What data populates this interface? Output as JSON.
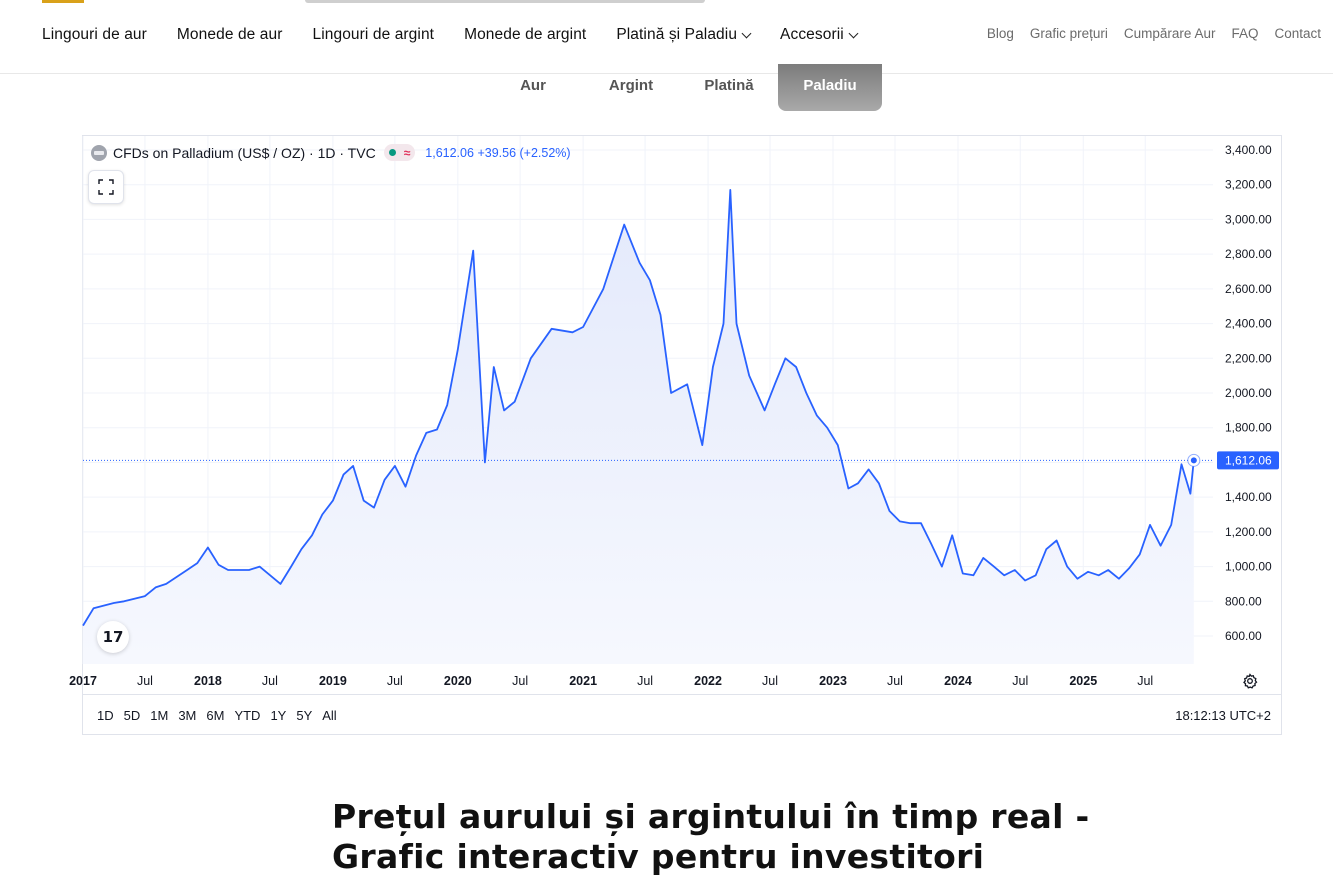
{
  "nav": {
    "main": [
      {
        "label": "Lingouri de aur",
        "dropdown": false
      },
      {
        "label": "Monede de aur",
        "dropdown": false
      },
      {
        "label": "Lingouri de argint",
        "dropdown": false
      },
      {
        "label": "Monede de argint",
        "dropdown": false
      },
      {
        "label": "Platină și Paladiu",
        "dropdown": true
      },
      {
        "label": "Accesorii",
        "dropdown": true
      }
    ],
    "secondary": [
      "Blog",
      "Grafic prețuri",
      "Cumpărare Aur",
      "FAQ",
      "Contact"
    ]
  },
  "metal_tabs": {
    "items": [
      "Aur",
      "Argint",
      "Platină",
      "Paladiu"
    ],
    "active": "Paladiu"
  },
  "widget": {
    "symbol_title": "CFDs on Palladium (US$ / OZ) · 1D · TVC",
    "badge_icon": "≈",
    "last_price": "1,612.06",
    "change": "+39.56 (+2.52%)",
    "price_label": "1,612.06",
    "tv_logo": "17",
    "ranges": [
      "1D",
      "5D",
      "1M",
      "3M",
      "6M",
      "YTD",
      "1Y",
      "5Y",
      "All"
    ],
    "clock": "18:12:13 UTC+2",
    "colors": {
      "line": "#2962ff",
      "fill": "#e3e9fb",
      "grid": "#f0f3fa"
    }
  },
  "chart_data": {
    "type": "area",
    "series": [
      {
        "values": [
          [
            "2017-01-01",
            660
          ],
          [
            "2017-02-01",
            760
          ],
          [
            "2017-04-01",
            790
          ],
          [
            "2017-05-01",
            800
          ],
          [
            "2017-07-01",
            830
          ],
          [
            "2017-08-01",
            880
          ],
          [
            "2017-09-01",
            900
          ],
          [
            "2017-11-01",
            980
          ],
          [
            "2017-12-01",
            1020
          ],
          [
            "2018-01-01",
            1110
          ],
          [
            "2018-02-01",
            1010
          ],
          [
            "2018-03-01",
            980
          ],
          [
            "2018-05-01",
            980
          ],
          [
            "2018-06-01",
            1000
          ],
          [
            "2018-08-01",
            900
          ],
          [
            "2018-09-01",
            1000
          ],
          [
            "2018-10-01",
            1100
          ],
          [
            "2018-11-01",
            1180
          ],
          [
            "2018-12-01",
            1300
          ],
          [
            "2019-01-01",
            1380
          ],
          [
            "2019-02-01",
            1530
          ],
          [
            "2019-03-01",
            1580
          ],
          [
            "2019-04-01",
            1380
          ],
          [
            "2019-05-01",
            1340
          ],
          [
            "2019-06-01",
            1500
          ],
          [
            "2019-07-01",
            1580
          ],
          [
            "2019-08-01",
            1460
          ],
          [
            "2019-09-01",
            1640
          ],
          [
            "2019-10-01",
            1770
          ],
          [
            "2019-11-01",
            1790
          ],
          [
            "2019-12-01",
            1930
          ],
          [
            "2020-01-01",
            2250
          ],
          [
            "2020-02-15",
            2820
          ],
          [
            "2020-03-20",
            1600
          ],
          [
            "2020-04-15",
            2150
          ],
          [
            "2020-05-15",
            1900
          ],
          [
            "2020-06-15",
            1950
          ],
          [
            "2020-08-01",
            2200
          ],
          [
            "2020-10-01",
            2370
          ],
          [
            "2020-12-01",
            2350
          ],
          [
            "2021-01-01",
            2380
          ],
          [
            "2021-03-01",
            2600
          ],
          [
            "2021-05-01",
            2970
          ],
          [
            "2021-06-15",
            2750
          ],
          [
            "2021-07-15",
            2650
          ],
          [
            "2021-08-15",
            2450
          ],
          [
            "2021-09-15",
            2000
          ],
          [
            "2021-11-01",
            2050
          ],
          [
            "2021-12-15",
            1700
          ],
          [
            "2022-01-15",
            2150
          ],
          [
            "2022-02-15",
            2400
          ],
          [
            "2022-03-07",
            3170
          ],
          [
            "2022-03-25",
            2400
          ],
          [
            "2022-05-01",
            2100
          ],
          [
            "2022-06-15",
            1900
          ],
          [
            "2022-07-15",
            2050
          ],
          [
            "2022-08-15",
            2200
          ],
          [
            "2022-09-15",
            2150
          ],
          [
            "2022-10-15",
            2000
          ],
          [
            "2022-11-15",
            1870
          ],
          [
            "2022-12-15",
            1800
          ],
          [
            "2023-01-15",
            1700
          ],
          [
            "2023-02-15",
            1450
          ],
          [
            "2023-03-15",
            1480
          ],
          [
            "2023-04-15",
            1560
          ],
          [
            "2023-05-15",
            1480
          ],
          [
            "2023-06-15",
            1320
          ],
          [
            "2023-07-15",
            1260
          ],
          [
            "2023-08-15",
            1250
          ],
          [
            "2023-09-15",
            1250
          ],
          [
            "2023-10-15",
            1130
          ],
          [
            "2023-11-15",
            1000
          ],
          [
            "2023-12-15",
            1180
          ],
          [
            "2024-01-15",
            960
          ],
          [
            "2024-02-15",
            950
          ],
          [
            "2024-03-15",
            1050
          ],
          [
            "2024-04-15",
            1000
          ],
          [
            "2024-05-15",
            950
          ],
          [
            "2024-06-15",
            980
          ],
          [
            "2024-07-15",
            920
          ],
          [
            "2024-08-15",
            950
          ],
          [
            "2024-09-15",
            1100
          ],
          [
            "2024-10-15",
            1150
          ],
          [
            "2024-11-15",
            1000
          ],
          [
            "2024-12-15",
            930
          ],
          [
            "2025-01-15",
            970
          ],
          [
            "2025-02-15",
            950
          ],
          [
            "2025-03-15",
            980
          ],
          [
            "2025-04-15",
            930
          ],
          [
            "2025-05-15",
            990
          ],
          [
            "2025-06-15",
            1070
          ],
          [
            "2025-07-15",
            1240
          ],
          [
            "2025-08-15",
            1120
          ],
          [
            "2025-09-15",
            1240
          ],
          [
            "2025-10-15",
            1590
          ],
          [
            "2025-11-10",
            1420
          ],
          [
            "2025-11-20",
            1612.06
          ]
        ]
      }
    ],
    "x_ticks": [
      "2017",
      "Jul",
      "2018",
      "Jul",
      "2019",
      "Jul",
      "2020",
      "Jul",
      "2021",
      "Jul",
      "2022",
      "Jul",
      "2023",
      "Jul",
      "2024",
      "Jul",
      "2025",
      "Jul"
    ],
    "y_ticks": [
      "3,400.00",
      "3,200.00",
      "3,000.00",
      "2,800.00",
      "2,600.00",
      "2,400.00",
      "2,200.00",
      "2,000.00",
      "1,800.00",
      "1,600.00",
      "1,400.00",
      "1,200.00",
      "1,000.00",
      "800.00",
      "600.00"
    ],
    "ylim": [
      500,
      3400
    ],
    "xlim": [
      "2017-01-01",
      "2026-01-15"
    ],
    "grid": true,
    "last_value": 1612.06
  },
  "headline": {
    "line1": "Prețul aurului și argintului în timp real -",
    "line2": "Grafic interactiv pentru investitori"
  }
}
